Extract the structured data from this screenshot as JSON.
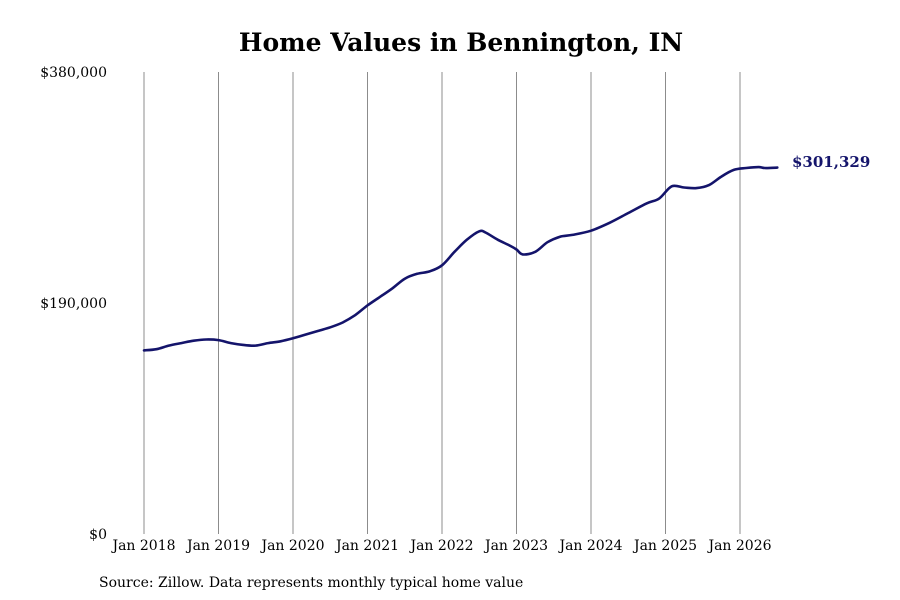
{
  "chart_data": {
    "type": "line",
    "title": "Home Values in Bennington, IN",
    "xlabel": "",
    "ylabel": "",
    "x_range": [
      "2018-01",
      "2026-07"
    ],
    "ylim": [
      0,
      380000
    ],
    "y_ticks": [
      {
        "value": 0,
        "label": "$0"
      },
      {
        "value": 190000,
        "label": "$190,000"
      },
      {
        "value": 380000,
        "label": "$380,000"
      }
    ],
    "x_ticks": [
      {
        "date": "2018-01",
        "label": "Jan 2018"
      },
      {
        "date": "2019-01",
        "label": "Jan 2019"
      },
      {
        "date": "2020-01",
        "label": "Jan 2020"
      },
      {
        "date": "2021-01",
        "label": "Jan 2021"
      },
      {
        "date": "2022-01",
        "label": "Jan 2022"
      },
      {
        "date": "2023-01",
        "label": "Jan 2023"
      },
      {
        "date": "2024-01",
        "label": "Jan 2024"
      },
      {
        "date": "2025-01",
        "label": "Jan 2025"
      },
      {
        "date": "2026-01",
        "label": "Jan 2026"
      }
    ],
    "grid": "vertical",
    "legend": "none",
    "line_color": "#14146b",
    "end_label": "$301,329",
    "series": [
      {
        "points": [
          [
            "2018-01",
            151000
          ],
          [
            "2018-03",
            152000
          ],
          [
            "2018-05",
            155000
          ],
          [
            "2018-07",
            157000
          ],
          [
            "2018-09",
            159000
          ],
          [
            "2018-11",
            160000
          ],
          [
            "2019-01",
            159500
          ],
          [
            "2019-03",
            157000
          ],
          [
            "2019-05",
            155500
          ],
          [
            "2019-07",
            155000
          ],
          [
            "2019-09",
            157000
          ],
          [
            "2019-11",
            158500
          ],
          [
            "2020-01",
            161000
          ],
          [
            "2020-03",
            164000
          ],
          [
            "2020-05",
            167000
          ],
          [
            "2020-07",
            170000
          ],
          [
            "2020-09",
            174000
          ],
          [
            "2020-11",
            180000
          ],
          [
            "2021-01",
            188000
          ],
          [
            "2021-03",
            195000
          ],
          [
            "2021-05",
            202000
          ],
          [
            "2021-07",
            210000
          ],
          [
            "2021-09",
            214000
          ],
          [
            "2021-11",
            216000
          ],
          [
            "2022-01",
            221000
          ],
          [
            "2022-03",
            232000
          ],
          [
            "2022-05",
            242000
          ],
          [
            "2022-07",
            249000
          ],
          [
            "2022-08",
            248000
          ],
          [
            "2022-10",
            242000
          ],
          [
            "2022-12",
            237000
          ],
          [
            "2023-01",
            234000
          ],
          [
            "2023-02",
            230000
          ],
          [
            "2023-04",
            232000
          ],
          [
            "2023-06",
            240000
          ],
          [
            "2023-08",
            244500
          ],
          [
            "2023-10",
            246000
          ],
          [
            "2024-01",
            249500
          ],
          [
            "2024-04",
            256000
          ],
          [
            "2024-07",
            264000
          ],
          [
            "2024-10",
            272000
          ],
          [
            "2024-12",
            276000
          ],
          [
            "2025-02",
            286000
          ],
          [
            "2025-04",
            285000
          ],
          [
            "2025-06",
            284500
          ],
          [
            "2025-08",
            287000
          ],
          [
            "2025-10",
            294000
          ],
          [
            "2025-12",
            299500
          ],
          [
            "2026-02",
            301000
          ],
          [
            "2026-04",
            301800
          ],
          [
            "2026-05",
            301000
          ],
          [
            "2026-07",
            301329
          ]
        ]
      }
    ],
    "source": "Source: Zillow. Data represents monthly typical home value"
  }
}
